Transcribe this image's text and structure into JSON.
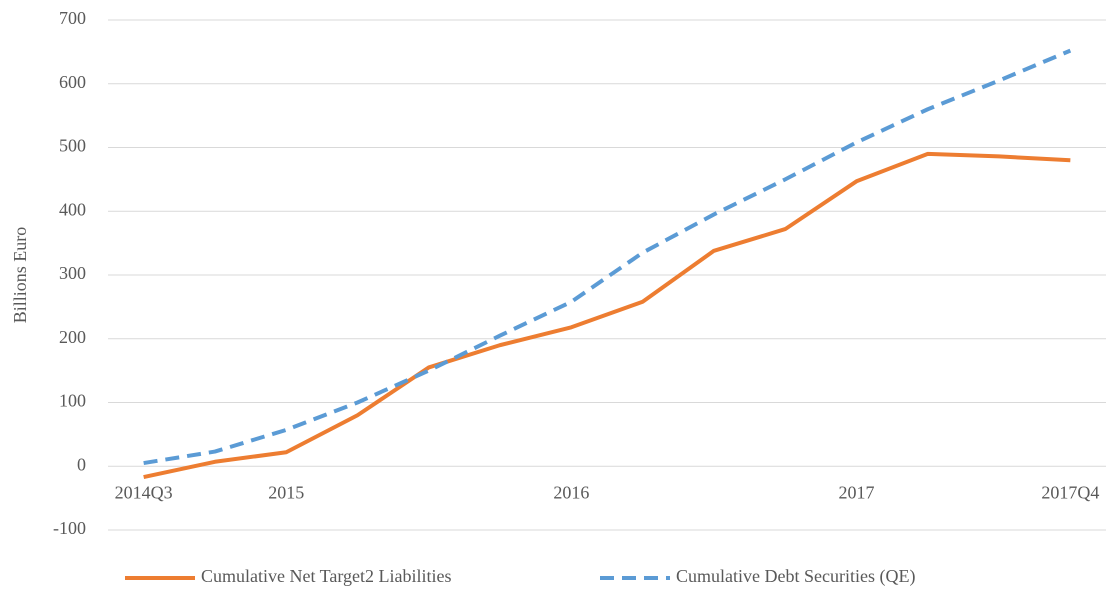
{
  "chart_data": {
    "type": "line",
    "y_label": "Billions Euro",
    "categories": [
      "2014Q3",
      null,
      "2015",
      null,
      null,
      null,
      "2016",
      null,
      null,
      null,
      "2017",
      null,
      null,
      "2017Q4"
    ],
    "series": [
      {
        "name": "Cumulative Net Target2 Liabilities",
        "color": "#ed7d31",
        "dash": false,
        "values": [
          -17,
          7,
          22,
          80,
          155,
          190,
          218,
          258,
          338,
          372,
          447,
          490,
          486,
          480
        ]
      },
      {
        "name": "Cumulative Debt Securities (QE)",
        "color": "#5b9bd5",
        "dash": true,
        "values": [
          5,
          23,
          57,
          100,
          150,
          205,
          258,
          335,
          395,
          450,
          508,
          560,
          605,
          652
        ]
      }
    ],
    "ylim": [
      -100,
      700
    ],
    "yticks": [
      -100,
      0,
      100,
      200,
      300,
      400,
      500,
      600,
      700
    ],
    "grid": true,
    "legend": "bottom"
  }
}
